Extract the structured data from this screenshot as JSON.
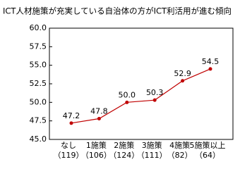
{
  "chart_data": {
    "type": "line",
    "title": "ICT人材施策が充実している自治体の方がICT利活用が進む傾向",
    "categories": [
      "なし",
      "1施策",
      "2施策",
      "3施策",
      "4施策",
      "5施策以上"
    ],
    "category_sublabels": [
      "（119）",
      "（106）",
      "（124）",
      "（111）",
      "（82）",
      "（64）"
    ],
    "values": [
      47.2,
      47.8,
      50,
      50.3,
      52.9,
      54.5
    ],
    "value_labels": [
      "47.2",
      "47.8",
      "50.0",
      "50.3",
      "52.9",
      "54.5"
    ],
    "color": "#c00000",
    "ylim": [
      45,
      60
    ],
    "yticks": [
      {
        "value": 45,
        "label": "45.0"
      },
      47.5,
      {
        "value": 50,
        "label": "50.0"
      },
      52.5,
      {
        "value": 55,
        "label": "55.0"
      },
      57.5,
      {
        "value": 60,
        "label": "60.0"
      }
    ],
    "grid": false
  }
}
